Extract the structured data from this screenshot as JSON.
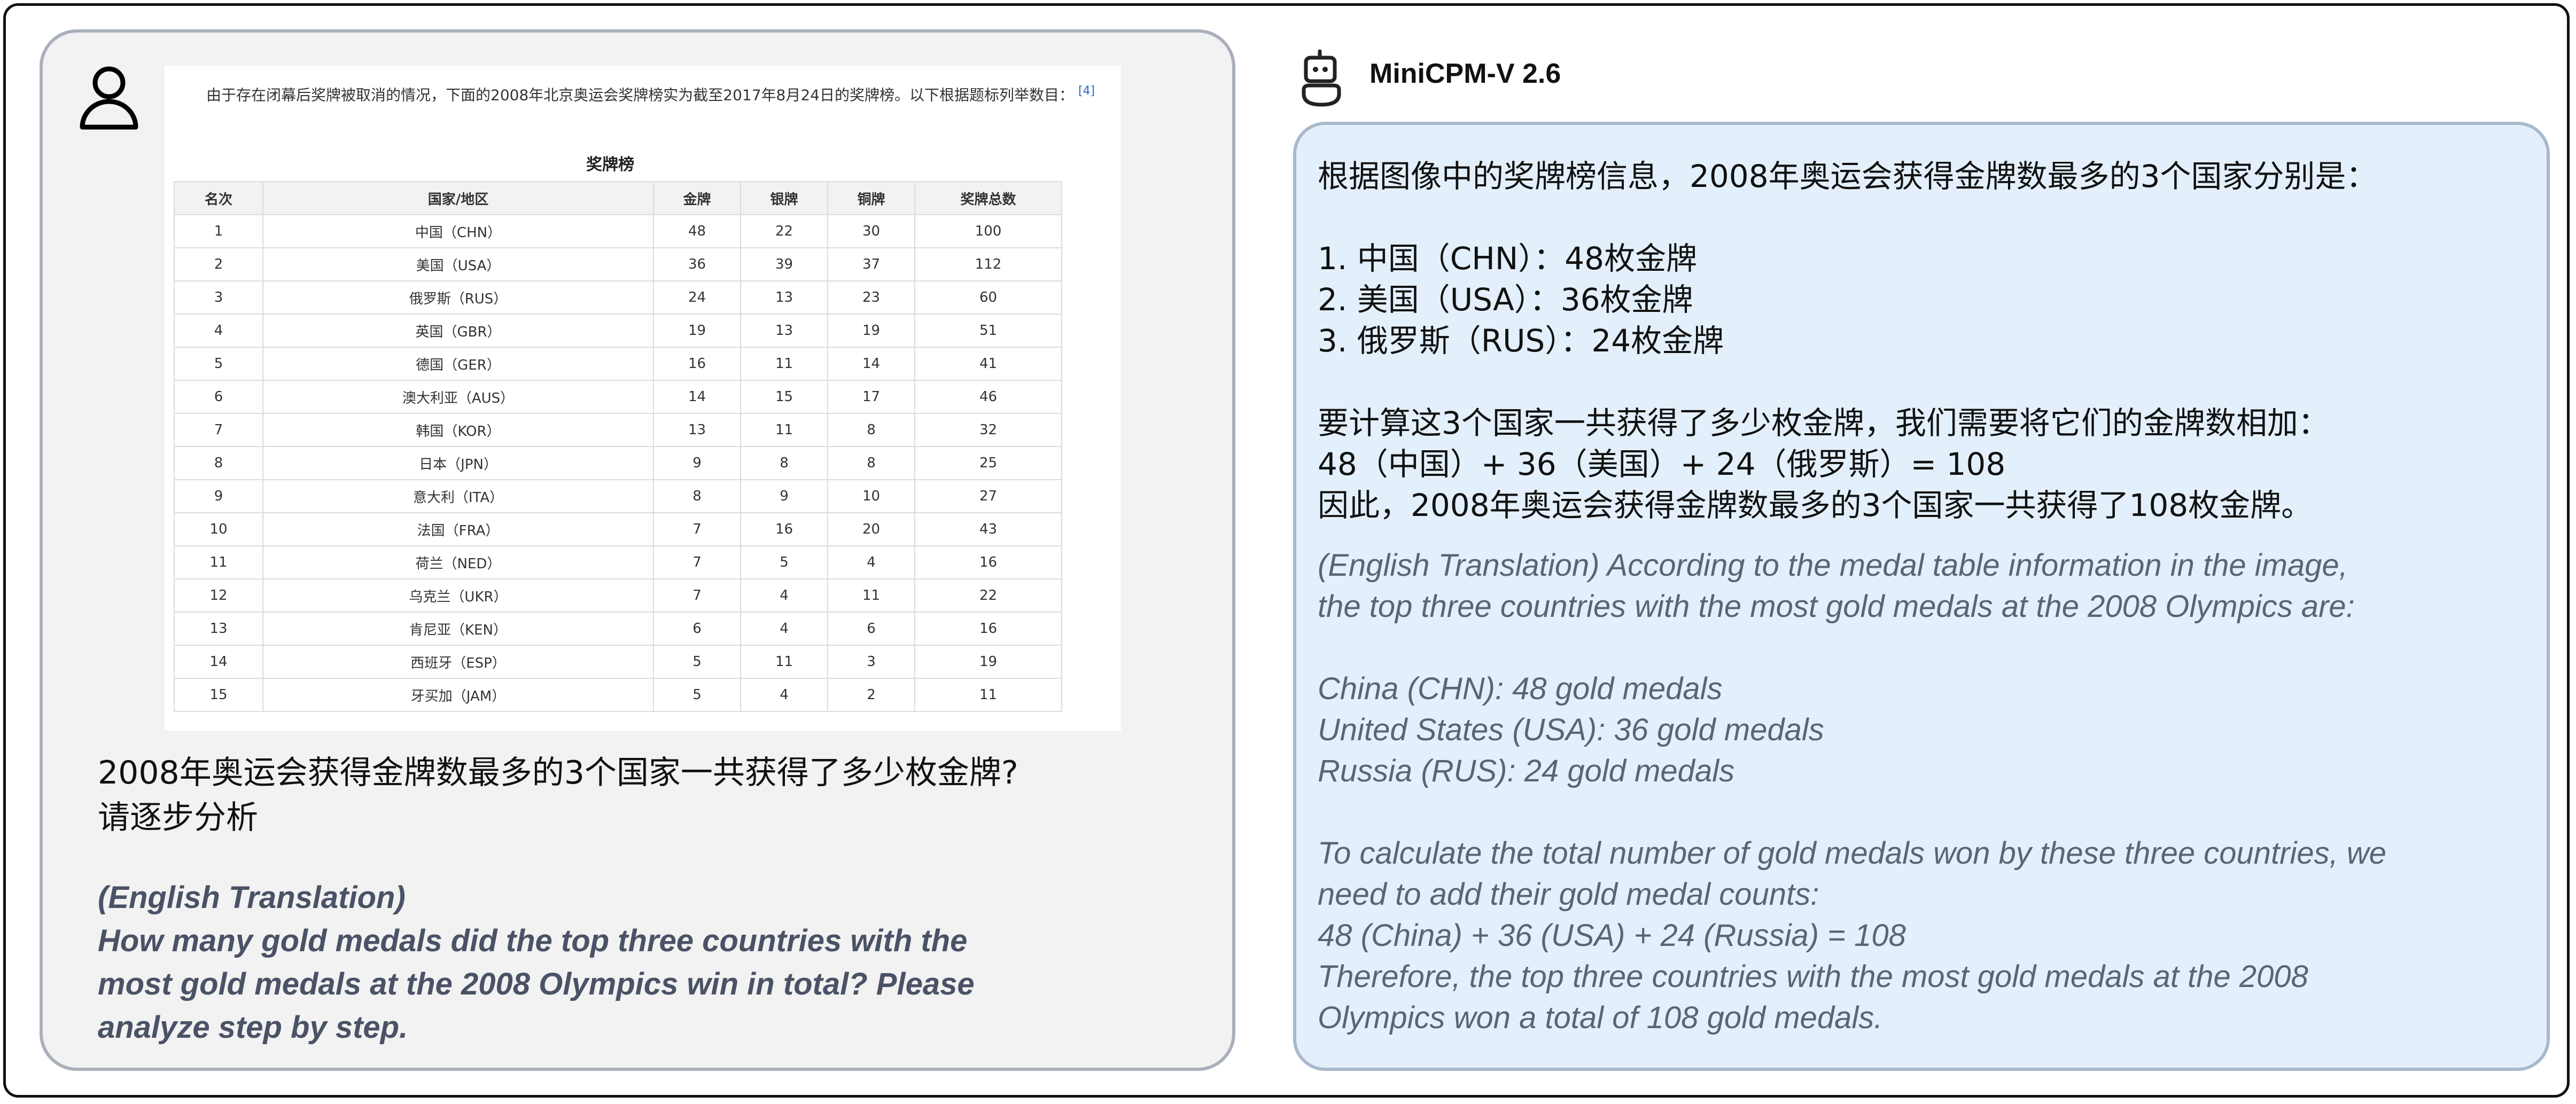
{
  "user": {
    "icon": "user-icon",
    "screenshot": {
      "intro": "由于存在闭幕后奖牌被取消的情况，下面的2008年北京奥运会奖牌榜实为截至2017年8月24日的奖牌榜。以下根据题标列举数目：",
      "ref": "[4]",
      "caption": "奖牌榜",
      "headers": [
        "名次",
        "国家/地区",
        "金牌",
        "银牌",
        "铜牌",
        "奖牌总数"
      ],
      "rows": [
        [
          "1",
          "中国（CHN）",
          "48",
          "22",
          "30",
          "100"
        ],
        [
          "2",
          "美国（USA）",
          "36",
          "39",
          "37",
          "112"
        ],
        [
          "3",
          "俄罗斯（RUS）",
          "24",
          "13",
          "23",
          "60"
        ],
        [
          "4",
          "英国（GBR）",
          "19",
          "13",
          "19",
          "51"
        ],
        [
          "5",
          "德国（GER）",
          "16",
          "11",
          "14",
          "41"
        ],
        [
          "6",
          "澳大利亚（AUS）",
          "14",
          "15",
          "17",
          "46"
        ],
        [
          "7",
          "韩国（KOR）",
          "13",
          "11",
          "8",
          "32"
        ],
        [
          "8",
          "日本（JPN）",
          "9",
          "8",
          "8",
          "25"
        ],
        [
          "9",
          "意大利（ITA）",
          "8",
          "9",
          "10",
          "27"
        ],
        [
          "10",
          "法国（FRA）",
          "7",
          "16",
          "20",
          "43"
        ],
        [
          "11",
          "荷兰（NED）",
          "7",
          "5",
          "4",
          "16"
        ],
        [
          "12",
          "乌克兰（UKR）",
          "7",
          "4",
          "11",
          "22"
        ],
        [
          "13",
          "肯尼亚（KEN）",
          "6",
          "4",
          "6",
          "16"
        ],
        [
          "14",
          "西班牙（ESP）",
          "5",
          "11",
          "3",
          "19"
        ],
        [
          "15",
          "牙买加（JAM）",
          "5",
          "4",
          "2",
          "11"
        ]
      ]
    },
    "question_lines": [
      "2008年奥运会获得金牌数最多的3个国家一共获得了多少枚金牌?",
      "请逐步分析"
    ],
    "translation_lines": [
      "(English Translation)",
      "How many gold medals did the top three countries with the",
      "most gold medals at the 2008 Olympics win in total? Please",
      "analyze step by step."
    ]
  },
  "assistant": {
    "icon": "robot-icon",
    "name": "MiniCPM-V 2.6",
    "answer_lines": [
      "根据图像中的奖牌榜信息，2008年奥运会获得金牌数最多的3个国家分别是：",
      "",
      "1. 中国（CHN）：48枚金牌",
      "2. 美国（USA）：36枚金牌",
      "3. 俄罗斯（RUS）：24枚金牌",
      "",
      "要计算这3个国家一共获得了多少枚金牌，我们需要将它们的金牌数相加：",
      "48（中国）+ 36（美国）+ 24（俄罗斯）= 108",
      "因此，2008年奥运会获得金牌数最多的3个国家一共获得了108枚金牌。"
    ],
    "translation_lines": [
      "(English Translation) According to the medal table information in the image,",
      "the top three countries with the most gold medals at the 2008 Olympics are:",
      "",
      "China (CHN): 48 gold medals",
      "United States (USA): 36 gold medals",
      "Russia (RUS): 24 gold medals",
      "",
      "To calculate the total number of gold medals won by these three countries, we",
      "need to add their gold medal counts:",
      "48 (China) + 36 (USA) + 24 (Russia) = 108",
      "Therefore, the top three countries with the most gold medals at the 2008",
      "Olympics won a total of 108 gold medals."
    ]
  }
}
